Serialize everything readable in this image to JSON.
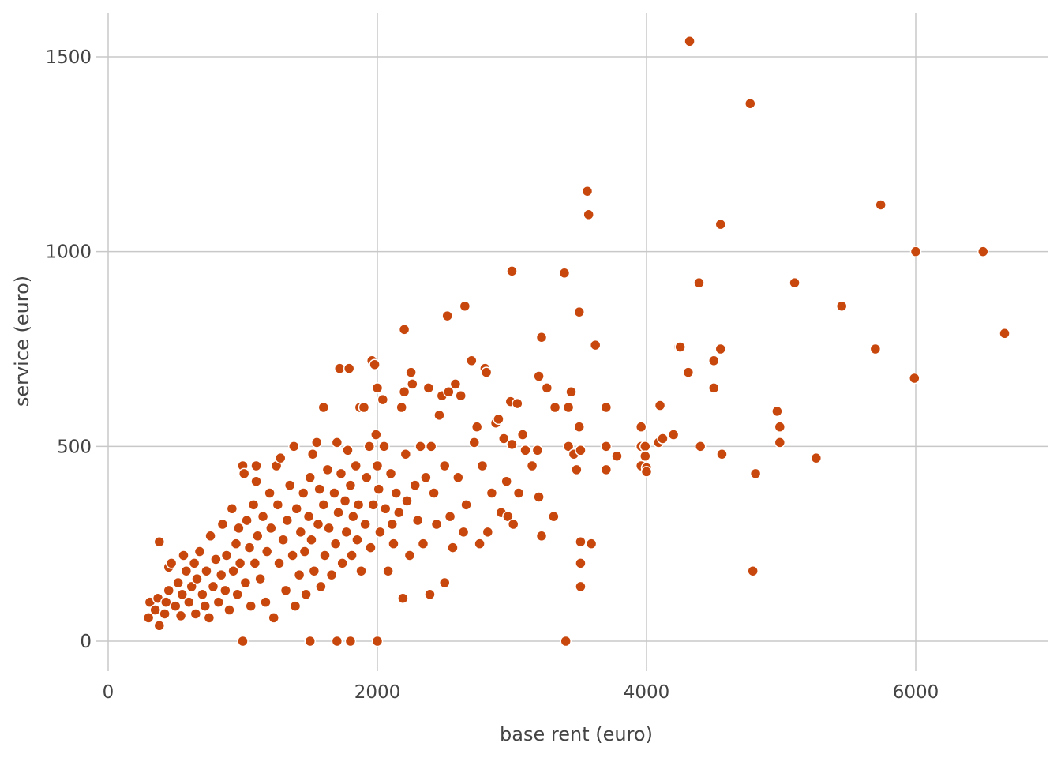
{
  "chart_data": {
    "type": "scatter",
    "xlabel": "base rent (euro)",
    "ylabel": "service (euro)",
    "xlim": [
      0,
      7000
    ],
    "ylim": [
      -70,
      1620
    ],
    "x_ticks": [
      0,
      2000,
      4000,
      6000
    ],
    "y_ticks": [
      0,
      500,
      1000,
      1500
    ],
    "grid": true,
    "color": "#c8470d",
    "series": [
      {
        "points": [
          [
            300,
            60
          ],
          [
            310,
            100
          ],
          [
            350,
            80
          ],
          [
            380,
            40
          ],
          [
            370,
            110
          ],
          [
            380,
            255
          ],
          [
            420,
            70
          ],
          [
            430,
            100
          ],
          [
            450,
            190
          ],
          [
            450,
            130
          ],
          [
            470,
            200
          ],
          [
            500,
            90
          ],
          [
            520,
            150
          ],
          [
            540,
            65
          ],
          [
            550,
            120
          ],
          [
            560,
            220
          ],
          [
            580,
            180
          ],
          [
            600,
            100
          ],
          [
            620,
            140
          ],
          [
            640,
            200
          ],
          [
            650,
            70
          ],
          [
            660,
            160
          ],
          [
            680,
            230
          ],
          [
            700,
            120
          ],
          [
            720,
            90
          ],
          [
            730,
            180
          ],
          [
            750,
            60
          ],
          [
            760,
            270
          ],
          [
            780,
            140
          ],
          [
            800,
            210
          ],
          [
            820,
            100
          ],
          [
            840,
            170
          ],
          [
            850,
            300
          ],
          [
            870,
            130
          ],
          [
            880,
            220
          ],
          [
            900,
            80
          ],
          [
            920,
            340
          ],
          [
            930,
            180
          ],
          [
            950,
            250
          ],
          [
            960,
            120
          ],
          [
            970,
            290
          ],
          [
            980,
            200
          ],
          [
            1000,
            0
          ],
          [
            1000,
            450
          ],
          [
            1010,
            430
          ],
          [
            1020,
            150
          ],
          [
            1030,
            310
          ],
          [
            1050,
            240
          ],
          [
            1060,
            90
          ],
          [
            1080,
            350
          ],
          [
            1090,
            200
          ],
          [
            1100,
            450
          ],
          [
            1100,
            410
          ],
          [
            1110,
            270
          ],
          [
            1130,
            160
          ],
          [
            1150,
            320
          ],
          [
            1170,
            100
          ],
          [
            1180,
            230
          ],
          [
            1200,
            380
          ],
          [
            1210,
            290
          ],
          [
            1230,
            60
          ],
          [
            1250,
            450
          ],
          [
            1260,
            350
          ],
          [
            1270,
            200
          ],
          [
            1280,
            470
          ],
          [
            1300,
            260
          ],
          [
            1320,
            130
          ],
          [
            1330,
            310
          ],
          [
            1350,
            400
          ],
          [
            1370,
            220
          ],
          [
            1380,
            500
          ],
          [
            1390,
            90
          ],
          [
            1400,
            340
          ],
          [
            1420,
            170
          ],
          [
            1430,
            280
          ],
          [
            1450,
            380
          ],
          [
            1460,
            230
          ],
          [
            1470,
            120
          ],
          [
            1490,
            320
          ],
          [
            1500,
            0
          ],
          [
            1500,
            420
          ],
          [
            1510,
            260
          ],
          [
            1520,
            480
          ],
          [
            1530,
            180
          ],
          [
            1550,
            510
          ],
          [
            1560,
            300
          ],
          [
            1570,
            390
          ],
          [
            1580,
            140
          ],
          [
            1600,
            600
          ],
          [
            1600,
            350
          ],
          [
            1610,
            220
          ],
          [
            1630,
            440
          ],
          [
            1640,
            290
          ],
          [
            1660,
            170
          ],
          [
            1680,
            380
          ],
          [
            1690,
            250
          ],
          [
            1700,
            0
          ],
          [
            1700,
            510
          ],
          [
            1710,
            330
          ],
          [
            1720,
            700
          ],
          [
            1730,
            430
          ],
          [
            1740,
            200
          ],
          [
            1760,
            360
          ],
          [
            1770,
            280
          ],
          [
            1780,
            490
          ],
          [
            1790,
            700
          ],
          [
            1800,
            0
          ],
          [
            1800,
            400
          ],
          [
            1810,
            220
          ],
          [
            1820,
            320
          ],
          [
            1840,
            450
          ],
          [
            1850,
            260
          ],
          [
            1860,
            350
          ],
          [
            1870,
            600
          ],
          [
            1880,
            180
          ],
          [
            1900,
            600
          ],
          [
            1910,
            300
          ],
          [
            1920,
            420
          ],
          [
            1940,
            500
          ],
          [
            1950,
            240
          ],
          [
            1960,
            720
          ],
          [
            1970,
            350
          ],
          [
            1980,
            710
          ],
          [
            1990,
            530
          ],
          [
            2000,
            0
          ],
          [
            2000,
            650
          ],
          [
            2000,
            450
          ],
          [
            2010,
            390
          ],
          [
            2020,
            280
          ],
          [
            2040,
            620
          ],
          [
            2050,
            500
          ],
          [
            2060,
            340
          ],
          [
            2080,
            180
          ],
          [
            2100,
            430
          ],
          [
            2110,
            300
          ],
          [
            2120,
            250
          ],
          [
            2140,
            380
          ],
          [
            2160,
            330
          ],
          [
            2180,
            600
          ],
          [
            2190,
            110
          ],
          [
            2200,
            800
          ],
          [
            2200,
            640
          ],
          [
            2210,
            480
          ],
          [
            2220,
            360
          ],
          [
            2240,
            220
          ],
          [
            2250,
            690
          ],
          [
            2260,
            660
          ],
          [
            2280,
            400
          ],
          [
            2300,
            310
          ],
          [
            2320,
            500
          ],
          [
            2340,
            250
          ],
          [
            2360,
            420
          ],
          [
            2380,
            650
          ],
          [
            2390,
            120
          ],
          [
            2400,
            500
          ],
          [
            2420,
            380
          ],
          [
            2440,
            300
          ],
          [
            2460,
            580
          ],
          [
            2480,
            630
          ],
          [
            2500,
            450
          ],
          [
            2500,
            150
          ],
          [
            2520,
            835
          ],
          [
            2530,
            640
          ],
          [
            2540,
            320
          ],
          [
            2560,
            240
          ],
          [
            2580,
            660
          ],
          [
            2600,
            420
          ],
          [
            2620,
            630
          ],
          [
            2640,
            280
          ],
          [
            2650,
            860
          ],
          [
            2660,
            350
          ],
          [
            2700,
            720
          ],
          [
            2720,
            510
          ],
          [
            2740,
            550
          ],
          [
            2760,
            250
          ],
          [
            2780,
            450
          ],
          [
            2800,
            700
          ],
          [
            2810,
            690
          ],
          [
            2820,
            280
          ],
          [
            2850,
            380
          ],
          [
            2880,
            560
          ],
          [
            2900,
            570
          ],
          [
            2920,
            330
          ],
          [
            2940,
            520
          ],
          [
            2960,
            410
          ],
          [
            2970,
            320
          ],
          [
            3000,
            950
          ],
          [
            2990,
            615
          ],
          [
            3000,
            505
          ],
          [
            3010,
            300
          ],
          [
            3040,
            610
          ],
          [
            3050,
            380
          ],
          [
            3080,
            530
          ],
          [
            3100,
            490
          ],
          [
            3150,
            450
          ],
          [
            3190,
            490
          ],
          [
            3200,
            680
          ],
          [
            3200,
            370
          ],
          [
            3220,
            270
          ],
          [
            3220,
            780
          ],
          [
            3260,
            650
          ],
          [
            3310,
            320
          ],
          [
            3320,
            600
          ],
          [
            3390,
            945
          ],
          [
            3400,
            0
          ],
          [
            3420,
            500
          ],
          [
            3420,
            600
          ],
          [
            3440,
            640
          ],
          [
            3460,
            480
          ],
          [
            3480,
            440
          ],
          [
            3500,
            845
          ],
          [
            3500,
            550
          ],
          [
            3510,
            490
          ],
          [
            3510,
            255
          ],
          [
            3510,
            200
          ],
          [
            3510,
            140
          ],
          [
            3560,
            1155
          ],
          [
            3570,
            1095
          ],
          [
            3590,
            250
          ],
          [
            3620,
            760
          ],
          [
            3700,
            600
          ],
          [
            3700,
            440
          ],
          [
            3700,
            500
          ],
          [
            3780,
            475
          ],
          [
            3960,
            550
          ],
          [
            3960,
            500
          ],
          [
            3960,
            450
          ],
          [
            3990,
            500
          ],
          [
            3990,
            475
          ],
          [
            4000,
            445
          ],
          [
            4000,
            435
          ],
          [
            4090,
            510
          ],
          [
            4100,
            605
          ],
          [
            4120,
            520
          ],
          [
            4200,
            530
          ],
          [
            4240,
            755
          ],
          [
            4250,
            755
          ],
          [
            4310,
            690
          ],
          [
            4320,
            1540
          ],
          [
            4390,
            920
          ],
          [
            4400,
            500
          ],
          [
            4500,
            720
          ],
          [
            4500,
            650
          ],
          [
            4550,
            1070
          ],
          [
            4550,
            750
          ],
          [
            4560,
            480
          ],
          [
            4770,
            1380
          ],
          [
            4790,
            180
          ],
          [
            4810,
            430
          ],
          [
            4970,
            590
          ],
          [
            4990,
            550
          ],
          [
            4990,
            510
          ],
          [
            5100,
            920
          ],
          [
            5260,
            470
          ],
          [
            5450,
            860
          ],
          [
            5700,
            750
          ],
          [
            5740,
            1120
          ],
          [
            5990,
            675
          ],
          [
            6000,
            1000
          ],
          [
            6500,
            1000
          ],
          [
            6660,
            790
          ]
        ]
      }
    ]
  }
}
